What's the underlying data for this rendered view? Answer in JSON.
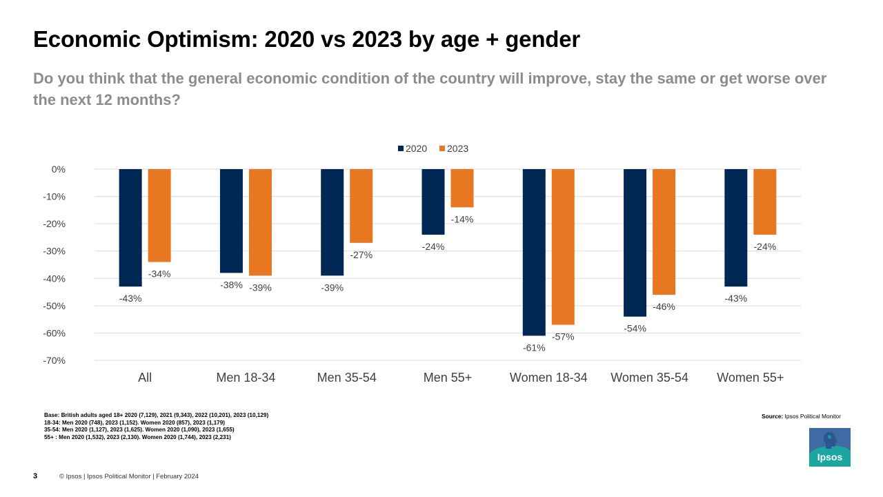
{
  "header": {
    "title": "Economic Optimism: 2020 vs 2023 by age + gender",
    "subtitle": "Do you think that the general economic condition of the country will improve, stay the same or get worse over the next 12 months?"
  },
  "chart_data": {
    "type": "bar",
    "categories": [
      "All",
      "Men 18-34",
      "Men 35-54",
      "Men 55+",
      "Women 18-34",
      "Women 35-54",
      "Women 55+"
    ],
    "series": [
      {
        "name": "2020",
        "color": "#002855",
        "values": [
          -43,
          -38,
          -39,
          -24,
          -61,
          -54,
          -43
        ]
      },
      {
        "name": "2023",
        "color": "#e87722",
        "values": [
          -34,
          -39,
          -27,
          -14,
          -57,
          -46,
          -24
        ]
      }
    ],
    "ylim": [
      -70,
      0
    ],
    "yticks": [
      0,
      -10,
      -20,
      -30,
      -40,
      -50,
      -60,
      -70
    ],
    "tick_suffix": "%",
    "grid": true,
    "legend_position": "top-center",
    "title": "",
    "xlabel": "",
    "ylabel": ""
  },
  "notes": {
    "base_lines": [
      "Base: British adults aged 18+ 2020 (7,129), 2021 (9,343), 2022 (10,201), 2023 (10,129)",
      "18-34:  Men 2020 (748), 2023 (1,152). Women 2020 (857), 2023 (1,179)",
      "35-54:  Men 2020 (1,127), 2023 (1,625). Women 2020 (1,090), 2023 (1,655)",
      "55+ :  Men 2020 (1,532), 2023 (2,130). Women 2020 (1,744), 2023 (2,231)"
    ],
    "source_label": "Source:",
    "source_text": " Ipsos Political Monitor"
  },
  "footer": {
    "page_number": "3",
    "text": "© Ipsos | Ipsos Political Monitor | February 2024"
  },
  "logo": {
    "text": "Ipsos",
    "icon": "ipsos-head-logo-icon"
  }
}
